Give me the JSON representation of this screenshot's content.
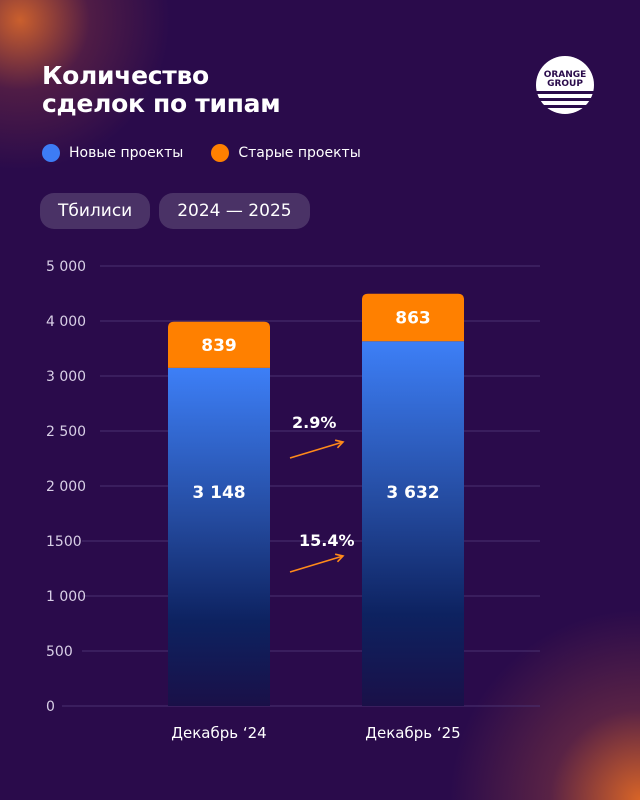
{
  "title": [
    "Количество",
    "сделок по типам"
  ],
  "logo": {
    "text": [
      "ORANGE",
      "GROUP"
    ]
  },
  "legend": [
    {
      "label": "Новые проекты",
      "color": "#3d7cf5"
    },
    {
      "label": "Старые проекты",
      "color": "#ff8000"
    }
  ],
  "filters": {
    "city": "Тбилиси",
    "period": "2024 — 2025"
  },
  "chart_data": {
    "type": "bar",
    "stacked": true,
    "categories": [
      "Декабрь ‘24",
      "Декабрь ‘25"
    ],
    "series": [
      {
        "name": "Новые проекты",
        "values": [
          3148,
          3632
        ],
        "labels": [
          "3 148",
          "3 632"
        ],
        "color": "#3d7cf5"
      },
      {
        "name": "Старые проекты",
        "values": [
          839,
          863
        ],
        "labels": [
          "839",
          "863"
        ],
        "color": "#ff8000"
      }
    ],
    "yticks": [
      0,
      500,
      1000,
      1500,
      2000,
      2500,
      3000,
      4000,
      5000
    ],
    "ytick_labels": [
      "0",
      "500",
      "1 000",
      "1500",
      "2 000",
      "2 500",
      "3 000",
      "4 000",
      "5 000"
    ],
    "ylim": [
      0,
      5000
    ],
    "grid": true,
    "annotations": [
      {
        "text": "2.9%",
        "series": "Старые проекты"
      },
      {
        "text": "15.4%",
        "series": "Новые проекты"
      }
    ]
  }
}
